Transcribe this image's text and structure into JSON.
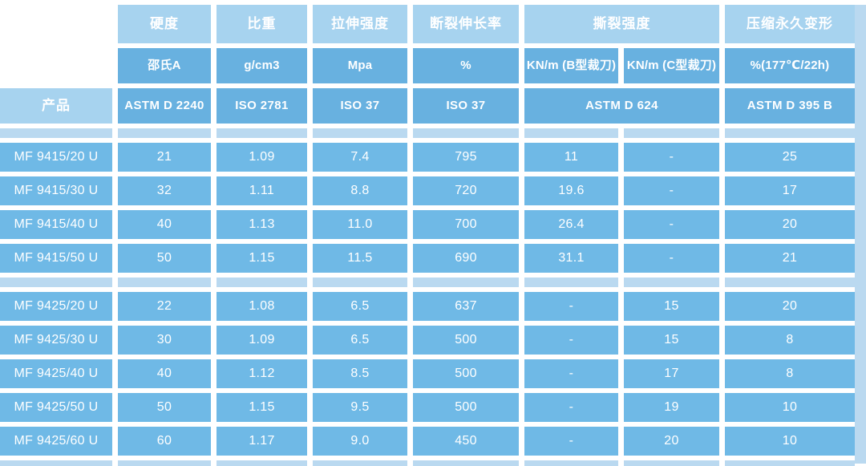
{
  "colors": {
    "light": "#a7d3ef",
    "mid": "#68b1e0",
    "cell": "#6fb9e6",
    "band": "#bad9f0",
    "text": "#ffffff"
  },
  "header": {
    "product": "产品",
    "groups": [
      "硬度",
      "比重",
      "拉伸强度",
      "断裂伸长率",
      "撕裂强度",
      "压缩永久变形"
    ],
    "units": [
      "邵氏A",
      "g/cm3",
      "Mpa",
      "%",
      "KN/m (B型裁刀)",
      "KN/m (C型裁刀)",
      "%(177℃/22h)"
    ],
    "standards": [
      "ASTM D 2240",
      "ISO 2781",
      "ISO 37",
      "ISO 37",
      "ASTM D 624",
      "ASTM D 395 B"
    ]
  },
  "group_break": 4,
  "rows": [
    {
      "product": "MF 9415/20 U",
      "values": [
        "21",
        "1.09",
        "7.4",
        "795",
        "11",
        "-",
        "25"
      ]
    },
    {
      "product": "MF 9415/30 U",
      "values": [
        "32",
        "1.11",
        "8.8",
        "720",
        "19.6",
        "-",
        "17"
      ]
    },
    {
      "product": "MF 9415/40 U",
      "values": [
        "40",
        "1.13",
        "11.0",
        "700",
        "26.4",
        "-",
        "20"
      ]
    },
    {
      "product": "MF 9415/50 U",
      "values": [
        "50",
        "1.15",
        "11.5",
        "690",
        "31.1",
        "-",
        "21"
      ]
    },
    {
      "product": "MF 9425/20 U",
      "values": [
        "22",
        "1.08",
        "6.5",
        "637",
        "-",
        "15",
        "20"
      ]
    },
    {
      "product": "MF 9425/30 U",
      "values": [
        "30",
        "1.09",
        "6.5",
        "500",
        "-",
        "15",
        "8"
      ]
    },
    {
      "product": "MF 9425/40 U",
      "values": [
        "40",
        "1.12",
        "8.5",
        "500",
        "-",
        "17",
        "8"
      ]
    },
    {
      "product": "MF 9425/50 U",
      "values": [
        "50",
        "1.15",
        "9.5",
        "500",
        "-",
        "19",
        "10"
      ]
    },
    {
      "product": "MF 9425/60 U",
      "values": [
        "60",
        "1.17",
        "9.0",
        "450",
        "-",
        "20",
        "10"
      ]
    }
  ]
}
